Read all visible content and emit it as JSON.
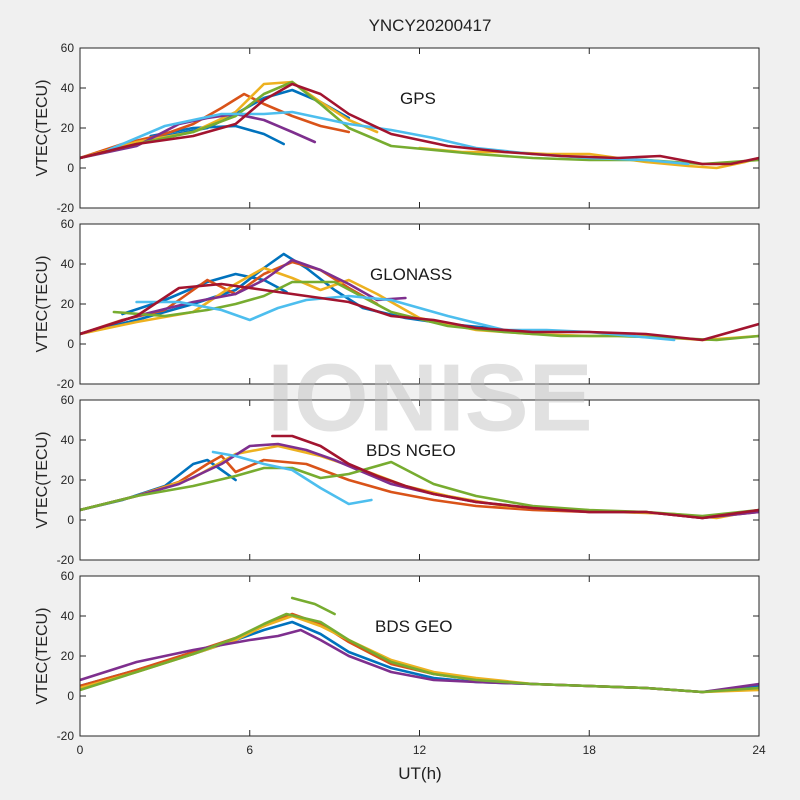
{
  "figure": {
    "title": "YNCY20200417",
    "xlabel": "UT(h)",
    "watermark": "IONISE"
  },
  "colors": [
    "#0072BD",
    "#D95319",
    "#EDB120",
    "#7E2F8E",
    "#77AC30",
    "#4DBEEE",
    "#A2142F"
  ],
  "chart_data": [
    {
      "type": "line",
      "label": "GPS",
      "xlim": [
        0,
        24
      ],
      "ylim": [
        -20,
        60
      ],
      "xticks": [
        0,
        6,
        12,
        18,
        24
      ],
      "yticks": [
        -20,
        0,
        20,
        40,
        60
      ],
      "ylabel": "VTEC(TECU)",
      "grid": false,
      "series": [
        {
          "color": "#0072BD",
          "x": [
            0,
            1.5,
            3,
            4.5,
            5.5,
            6.5,
            7.5,
            8.5,
            9.5
          ],
          "y": [
            5,
            11,
            16,
            20,
            27,
            35,
            39,
            33,
            25
          ]
        },
        {
          "color": "#0072BD",
          "x": [
            2.5,
            4,
            5.5,
            6.5,
            7.2
          ],
          "y": [
            16,
            20,
            21,
            17,
            12
          ]
        },
        {
          "color": "#D95319",
          "x": [
            0,
            1.5,
            3,
            4,
            5,
            5.8,
            6.5,
            7.5,
            8.5,
            9.5
          ],
          "y": [
            5,
            12,
            17,
            22,
            30,
            37,
            32,
            26,
            21,
            18
          ]
        },
        {
          "color": "#EDB120",
          "x": [
            0,
            2,
            4,
            5.5,
            6.5,
            7.5,
            8.5,
            9.5,
            10.5
          ],
          "y": [
            5,
            13,
            18,
            28,
            42,
            43,
            33,
            24,
            18
          ]
        },
        {
          "color": "#EDB120",
          "x": [
            12,
            13.5,
            15,
            16.5,
            18,
            20,
            21.5,
            22.5,
            23.5,
            24
          ],
          "y": [
            10,
            8,
            8,
            7,
            7,
            3,
            1,
            0,
            3,
            5
          ]
        },
        {
          "color": "#7E2F8E",
          "x": [
            0,
            2,
            3.5,
            4.5,
            5.5,
            6.5,
            7.5,
            8.3
          ],
          "y": [
            5,
            11,
            22,
            25,
            27,
            24,
            18,
            13
          ]
        },
        {
          "color": "#77AC30",
          "x": [
            0,
            2,
            4,
            5.5,
            6.5,
            7.5,
            8.5,
            9.5,
            11,
            12.5,
            14,
            16,
            18,
            20,
            22,
            24
          ],
          "y": [
            5,
            12,
            18,
            26,
            37,
            43,
            32,
            20,
            11,
            9,
            7,
            5,
            4,
            4,
            2,
            4
          ]
        },
        {
          "color": "#4DBEEE",
          "x": [
            1,
            3,
            5,
            6.5,
            7.5,
            8.5,
            9.5,
            11,
            12.5,
            14,
            16,
            18,
            20,
            21.5
          ],
          "y": [
            9,
            21,
            27,
            27,
            28,
            25,
            22,
            19,
            15,
            10,
            7,
            5,
            4,
            2
          ]
        },
        {
          "color": "#A2142F",
          "x": [
            0,
            2,
            4,
            5.5,
            6.5,
            7.5,
            8.5,
            9.5,
            11,
            13,
            15,
            17,
            19,
            20.5,
            22,
            23,
            24
          ],
          "y": [
            5,
            12,
            16,
            22,
            34,
            42,
            37,
            27,
            17,
            11,
            8,
            6,
            5,
            6,
            2,
            2,
            5
          ]
        }
      ]
    },
    {
      "type": "line",
      "label": "GLONASS",
      "xlim": [
        0,
        24
      ],
      "ylim": [
        -20,
        60
      ],
      "xticks": [
        0,
        6,
        12,
        18,
        24
      ],
      "yticks": [
        -20,
        0,
        20,
        40,
        60
      ],
      "ylabel": "VTEC(TECU)",
      "grid": false,
      "series": [
        {
          "color": "#0072BD",
          "x": [
            0,
            2,
            4,
            5.5,
            6.5,
            7.2,
            8,
            9,
            10,
            11.5,
            13,
            14.5
          ],
          "y": [
            5,
            12,
            20,
            27,
            38,
            45,
            38,
            27,
            18,
            13,
            10,
            8
          ]
        },
        {
          "color": "#0072BD",
          "x": [
            1.5,
            3,
            4.5,
            5.5,
            6.5,
            7.3
          ],
          "y": [
            15,
            22,
            31,
            35,
            32,
            26
          ]
        },
        {
          "color": "#D95319",
          "x": [
            0,
            1.5,
            3,
            4.5,
            5.5,
            6.5,
            7.5,
            8.5,
            9.5,
            10.5
          ],
          "y": [
            5,
            12,
            17,
            32,
            25,
            35,
            41,
            37,
            28,
            20
          ]
        },
        {
          "color": "#EDB120",
          "x": [
            0,
            2,
            4,
            5.5,
            6.5,
            7.5,
            8.5,
            9.5,
            10.5,
            12,
            14,
            16,
            18,
            20,
            22,
            24
          ],
          "y": [
            5,
            11,
            16,
            30,
            38,
            33,
            27,
            32,
            25,
            13,
            7,
            5,
            4,
            4,
            2,
            4
          ]
        },
        {
          "color": "#7E2F8E",
          "x": [
            0,
            2,
            4,
            5.5,
            6.5,
            7.5,
            8.5,
            9.5,
            10.5,
            11.5
          ],
          "y": [
            5,
            14,
            21,
            25,
            32,
            42,
            37,
            30,
            22,
            23
          ]
        },
        {
          "color": "#77AC30",
          "x": [
            1.2,
            3,
            4.5,
            5.5,
            6.5,
            7.5,
            9,
            11,
            13,
            15,
            17,
            19,
            21,
            22.5,
            24
          ],
          "y": [
            16,
            14,
            17,
            20,
            24,
            31,
            31,
            16,
            9,
            6,
            4,
            4,
            3,
            2,
            4
          ]
        },
        {
          "color": "#4DBEEE",
          "x": [
            2,
            3.5,
            5,
            6,
            7,
            8,
            9.5,
            11,
            13,
            15,
            16.5,
            18,
            19.5,
            21
          ],
          "y": [
            21,
            21,
            17,
            12,
            18,
            22,
            24,
            22,
            14,
            7,
            7,
            6,
            4,
            2
          ]
        },
        {
          "color": "#A2142F",
          "x": [
            0,
            2,
            3.5,
            5,
            6.5,
            8,
            9.5,
            11,
            12.5,
            14,
            16,
            18,
            20,
            22,
            24
          ],
          "y": [
            5,
            14,
            28,
            30,
            27,
            24,
            21,
            14,
            12,
            8,
            6,
            6,
            5,
            2,
            10
          ]
        }
      ]
    },
    {
      "type": "line",
      "label": "BDS NGEO",
      "xlim": [
        0,
        24
      ],
      "ylim": [
        -20,
        60
      ],
      "xticks": [
        0,
        6,
        12,
        18,
        24
      ],
      "yticks": [
        -20,
        0,
        20,
        40,
        60
      ],
      "ylabel": "VTEC(TECU)",
      "grid": false,
      "series": [
        {
          "color": "#0072BD",
          "x": [
            0,
            1.5,
            3,
            4,
            4.5,
            5,
            5.5
          ],
          "y": [
            5,
            10,
            17,
            28,
            30,
            25,
            20
          ]
        },
        {
          "color": "#D95319",
          "x": [
            0,
            2,
            3.5,
            4.5,
            5,
            5.5,
            6.5,
            8,
            9.5,
            11,
            12.5,
            14,
            16,
            18,
            20,
            22,
            24
          ],
          "y": [
            5,
            12,
            19,
            28,
            32,
            24,
            30,
            28,
            20,
            14,
            10,
            7,
            5,
            4,
            4,
            1,
            4
          ]
        },
        {
          "color": "#EDB120",
          "x": [
            0,
            2,
            4,
            5.5,
            7,
            8.5,
            10,
            11.5,
            13,
            15,
            17,
            19,
            21,
            22.5,
            24
          ],
          "y": [
            5,
            12,
            21,
            33,
            37,
            32,
            25,
            17,
            12,
            7,
            5,
            4,
            3,
            1,
            5
          ]
        },
        {
          "color": "#7E2F8E",
          "x": [
            0,
            2,
            3.5,
            5,
            6,
            7,
            8,
            9,
            10,
            11,
            12.5,
            14,
            16,
            18,
            20,
            22,
            24
          ],
          "y": [
            5,
            12,
            18,
            28,
            37,
            38,
            35,
            30,
            24,
            18,
            13,
            9,
            6,
            4,
            4,
            1,
            4
          ]
        },
        {
          "color": "#77AC30",
          "x": [
            0,
            2,
            4,
            5.5,
            6.5,
            7.5,
            8.5,
            9.5,
            11,
            12.5,
            14,
            16,
            18,
            20,
            22,
            24
          ],
          "y": [
            5,
            12,
            17,
            22,
            26,
            26,
            21,
            23,
            29,
            18,
            12,
            7,
            5,
            4,
            2,
            5
          ]
        },
        {
          "color": "#4DBEEE",
          "x": [
            4.7,
            5.5,
            6.5,
            7.5,
            8.5,
            9.5,
            10.3
          ],
          "y": [
            34,
            32,
            28,
            25,
            16,
            8,
            10
          ]
        },
        {
          "color": "#A2142F",
          "x": [
            6.8,
            7.5,
            8.5,
            9.5,
            10.5,
            11.5,
            12.5,
            14,
            16,
            18,
            20,
            22,
            24
          ],
          "y": [
            42,
            42,
            37,
            28,
            22,
            17,
            13,
            9,
            6,
            4,
            4,
            1,
            5
          ]
        }
      ]
    },
    {
      "type": "line",
      "label": "BDS GEO",
      "xlim": [
        0,
        24
      ],
      "ylim": [
        -20,
        60
      ],
      "xticks": [
        0,
        6,
        12,
        18,
        24
      ],
      "yticks": [
        -20,
        0,
        20,
        40,
        60
      ],
      "ylabel": "VTEC(TECU)",
      "grid": false,
      "series": [
        {
          "color": "#0072BD",
          "x": [
            0,
            2,
            4,
            5.5,
            6.5,
            7.5,
            8.5,
            9.5,
            11,
            12.5,
            14,
            16,
            18,
            20,
            22,
            24
          ],
          "y": [
            5,
            13,
            21,
            28,
            33,
            37,
            31,
            22,
            14,
            9,
            7,
            6,
            5,
            4,
            2,
            5
          ]
        },
        {
          "color": "#D95319",
          "x": [
            0,
            2,
            4,
            5.5,
            6.5,
            7.5,
            8.5,
            9.5,
            11,
            12.5,
            14,
            16,
            18,
            20,
            22,
            24
          ],
          "y": [
            5,
            13,
            22,
            29,
            35,
            41,
            36,
            27,
            16,
            11,
            8,
            6,
            5,
            4,
            2,
            4
          ]
        },
        {
          "color": "#EDB120",
          "x": [
            0,
            2,
            4,
            5.5,
            6.5,
            7.5,
            8.5,
            9.5,
            11,
            12.5,
            14,
            16,
            18,
            20,
            22,
            24
          ],
          "y": [
            4,
            12,
            21,
            28,
            35,
            40,
            35,
            28,
            18,
            12,
            9,
            6,
            5,
            4,
            2,
            3
          ]
        },
        {
          "color": "#7E2F8E",
          "x": [
            0,
            2,
            4,
            6,
            7,
            7.8,
            8.5,
            9.5,
            11,
            12.5,
            14,
            16,
            18,
            20,
            22,
            24
          ],
          "y": [
            8,
            17,
            23,
            28,
            30,
            33,
            28,
            20,
            12,
            8,
            7,
            6,
            5,
            4,
            2,
            6
          ]
        },
        {
          "color": "#77AC30",
          "x": [
            0,
            2,
            4,
            5.5,
            6.5,
            7.3,
            8.5,
            9.5,
            11,
            12.5,
            14,
            16,
            18,
            20,
            22,
            24
          ],
          "y": [
            3,
            12,
            21,
            29,
            36,
            41,
            37,
            28,
            17,
            11,
            8,
            6,
            5,
            4,
            2,
            4
          ]
        },
        {
          "color": "#77AC30",
          "x": [
            7.5,
            8.3,
            9
          ],
          "y": [
            49,
            46,
            41
          ]
        }
      ]
    }
  ]
}
